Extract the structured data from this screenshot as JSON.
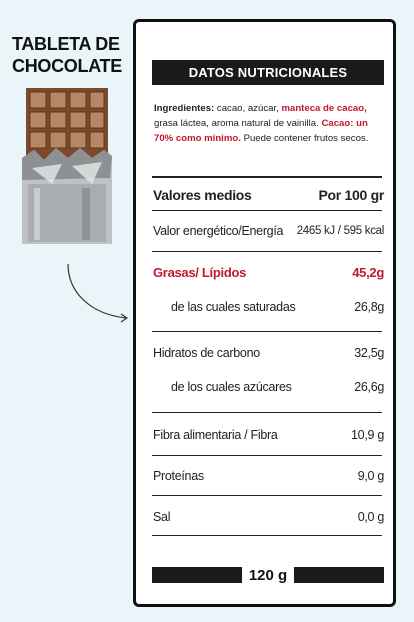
{
  "product": {
    "title_line1": "TABLETA DE",
    "title_line2": "CHOCOLATE"
  },
  "label": {
    "header": "DATOS NUTRICIONALES",
    "ingredients": {
      "label": "Ingredientes:",
      "part1": " cacao, azúcar, ",
      "highlight1": "manteca de cacao,",
      "part2": " grasa láctea, aroma natural de vainilla. ",
      "highlight2": "Cacao: un 70% como mínimo.",
      "part3": " Puede contener frutos secos."
    },
    "header_row": {
      "label": "Valores medios",
      "value": "Por 100 gr"
    },
    "rows": [
      {
        "label": "Valor energético/Energía",
        "value": "2465 kJ / 595 kcal"
      },
      {
        "label": "Grasas/ Lípidos",
        "value": "45,2g"
      },
      {
        "label": "de las cuales saturadas",
        "value": "26,8g"
      },
      {
        "label": "Hidratos de carbono",
        "value": "32,5g"
      },
      {
        "label": "de los cuales azúcares",
        "value": "26,6g"
      },
      {
        "label": "Fibra alimentaria / Fibra",
        "value": "10,9 g"
      },
      {
        "label": "Proteínas",
        "value": "9,0 g"
      },
      {
        "label": "Sal",
        "value": "0,0 g"
      }
    ],
    "net_weight": "120 g"
  },
  "colors": {
    "accent_red": "#c0192b",
    "background": "#eaf5f9",
    "dark": "#1a1a1a"
  }
}
